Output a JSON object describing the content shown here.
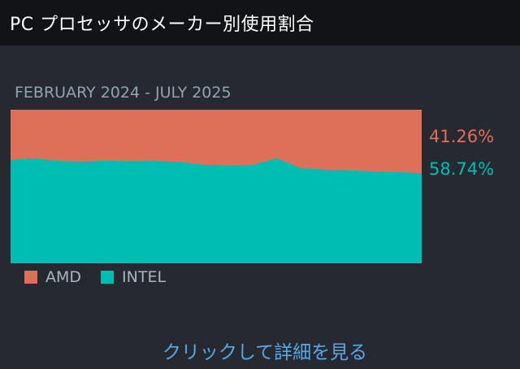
{
  "header": {
    "title": "PC プロセッサのメーカー別使用割合"
  },
  "date_range": "FEBRUARY 2024 - JULY 2025",
  "details_link": "クリックして詳細を見る",
  "colors": {
    "amd": "#de6f58",
    "intel": "#00bdb4",
    "background": "#262930",
    "header": "#111317"
  },
  "chart_data": {
    "type": "area",
    "stacked": true,
    "percent": true,
    "title": "",
    "xlabel": "",
    "ylabel": "",
    "ylim": [
      0,
      100
    ],
    "grid": false,
    "legend_position": "bottom-left",
    "x": [
      "2024-02",
      "2024-03",
      "2024-04",
      "2024-05",
      "2024-06",
      "2024-07",
      "2024-08",
      "2024-09",
      "2024-10",
      "2024-11",
      "2024-12",
      "2025-01",
      "2025-02",
      "2025-03",
      "2025-04",
      "2025-05",
      "2025-06",
      "2025-07"
    ],
    "series": [
      {
        "name": "INTEL",
        "color": "#00bdb4",
        "values": [
          67.3,
          68.2,
          66.6,
          66.2,
          66.8,
          66.4,
          66.6,
          65.9,
          64.1,
          63.6,
          63.8,
          68.3,
          61.9,
          60.9,
          60.4,
          59.8,
          59.3,
          58.74
        ]
      },
      {
        "name": "AMD",
        "color": "#de6f58",
        "values": [
          32.7,
          31.8,
          33.4,
          33.8,
          33.2,
          33.6,
          33.4,
          34.1,
          35.9,
          36.4,
          36.2,
          31.7,
          38.1,
          39.1,
          39.6,
          40.2,
          40.7,
          41.26
        ]
      }
    ],
    "end_labels": [
      "41.26%",
      "58.74%"
    ]
  }
}
